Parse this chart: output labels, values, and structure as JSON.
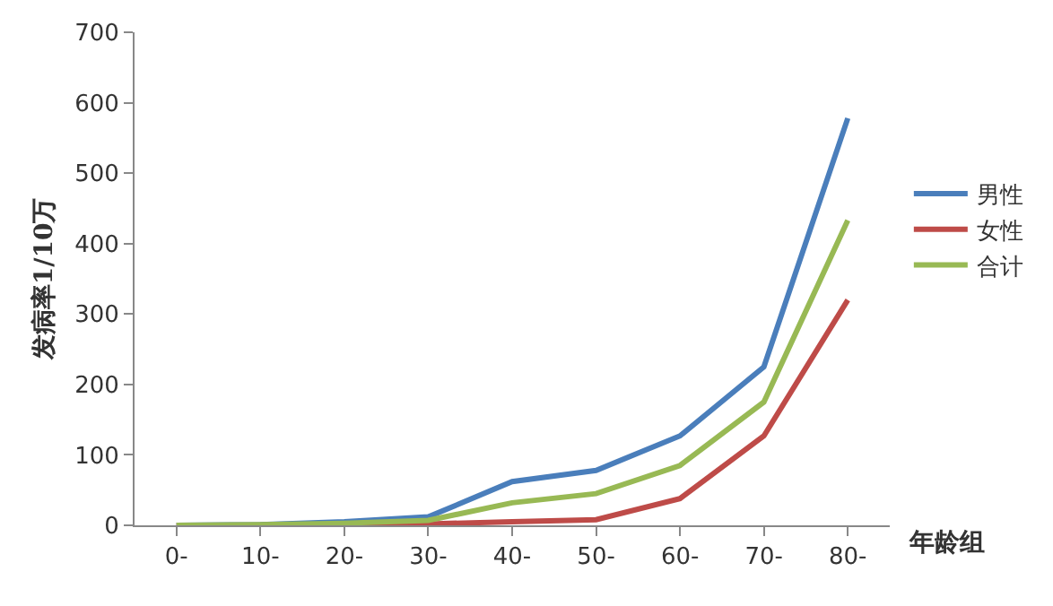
{
  "chart_data": {
    "type": "line",
    "xlabel": "年龄组",
    "ylabel": "发病率1/10万",
    "categories": [
      "0-",
      "10-",
      "20-",
      "30-",
      "40-",
      "50-",
      "60-",
      "70-",
      "80-"
    ],
    "ylim": [
      0,
      700
    ],
    "yticks": [
      0,
      100,
      200,
      300,
      400,
      500,
      600,
      700
    ],
    "legend": "right",
    "marker": "none",
    "series": [
      {
        "name": "男性",
        "color": "#4a7ebb",
        "values": [
          0,
          1,
          5,
          12,
          62,
          78,
          127,
          225,
          578
        ]
      },
      {
        "name": "女性",
        "color": "#be4b48",
        "values": [
          0,
          0,
          1,
          2,
          5,
          8,
          38,
          127,
          320
        ]
      },
      {
        "name": "合计",
        "color": "#98b954",
        "values": [
          0,
          1,
          3,
          7,
          32,
          45,
          85,
          175,
          433
        ]
      }
    ]
  }
}
